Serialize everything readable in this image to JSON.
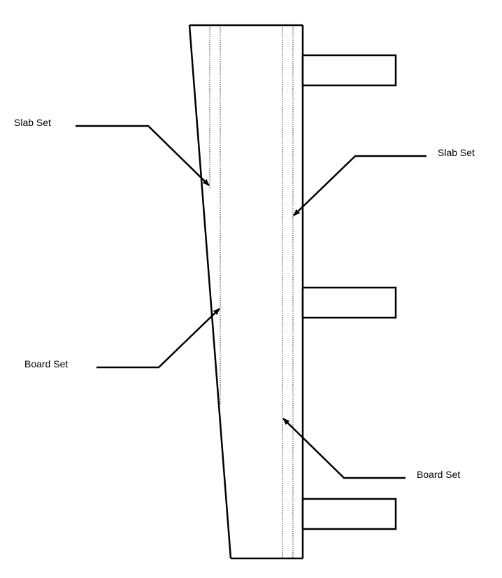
{
  "labels": {
    "slab_set_left": "Slab Set",
    "slab_set_right": "Slab Set",
    "board_set_left": "Board Set",
    "board_set_right": "Board Set"
  },
  "colors": {
    "stroke": "#000000",
    "background": "#ffffff"
  }
}
